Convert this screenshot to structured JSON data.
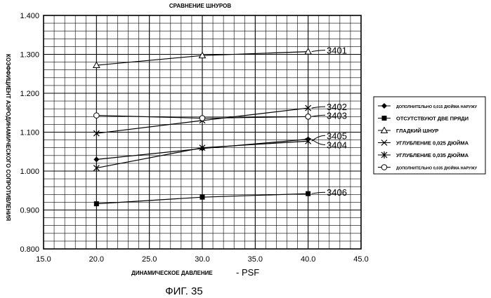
{
  "chart_data": {
    "type": "line",
    "title": "СРАВНЕНИЕ ШНУРОВ",
    "xlabel": "ДИНАМИЧЕСКОЕ ДАВЛЕНИЕ",
    "xlabel_unit": "- PSF",
    "ylabel": "КОЭФФИЦИЕНТ АЭРОДИНАМИЧЕСКОГО СОПРОТИВЛЕНИЯ",
    "xlim": [
      15.0,
      45.0
    ],
    "ylim": [
      0.8,
      1.4
    ],
    "x_ticks": [
      "15.0",
      "20.0",
      "25.0",
      "30.0",
      "35.0",
      "40.0",
      "45.0"
    ],
    "y_ticks": [
      "0.800",
      "0.900",
      "1.000",
      "1.100",
      "1.200",
      "1.300",
      "1.400"
    ],
    "grid": true,
    "legend_position": "right",
    "x": [
      20.0,
      30.0,
      40.0
    ],
    "series": [
      {
        "name": "ДОПОЛНИТЕЛЬНО 0,015 ДЮЙМА НАРУЖУ",
        "marker": "diamond",
        "callout": "3404",
        "values": [
          1.03,
          1.058,
          1.082
        ]
      },
      {
        "name": "ОТСУТСТВУЮТ ДВЕ ПРЯДИ",
        "marker": "square",
        "callout": "3406",
        "values": [
          0.916,
          0.933,
          0.942
        ]
      },
      {
        "name": "ГЛАДКИЙ ШНУР",
        "marker": "triangle",
        "callout": "3401",
        "values": [
          1.272,
          1.297,
          1.307
        ]
      },
      {
        "name": "УГЛУБЛЕНИЕ 0,025 ДЮЙМА",
        "marker": "x",
        "callout": "3402",
        "values": [
          1.097,
          1.13,
          1.162
        ]
      },
      {
        "name": "УГЛУБЛЕНИЕ 0,035 ДЮЙМА",
        "marker": "star",
        "callout": "3405",
        "values": [
          1.008,
          1.06,
          1.077
        ]
      },
      {
        "name": "ДОПОЛНИТЕЛЬНО 0,035 ДЮЙМА НАРУЖУ",
        "marker": "circle",
        "callout": "3403",
        "values": [
          1.143,
          1.136,
          1.14
        ]
      }
    ]
  },
  "caption": "ФИГ. 35"
}
